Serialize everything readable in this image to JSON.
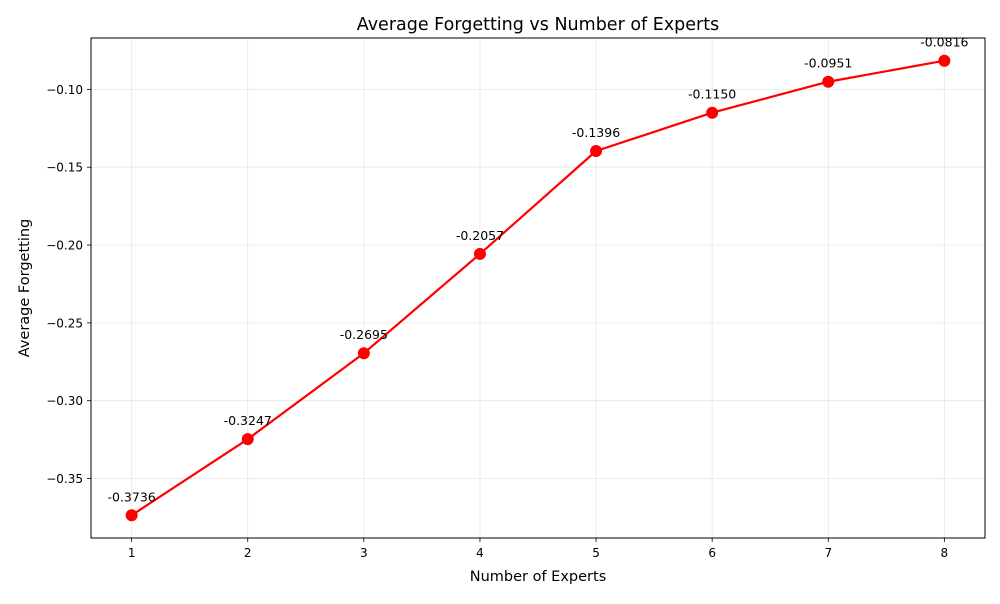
{
  "chart_data": {
    "type": "line",
    "title": "Average Forgetting vs Number of Experts",
    "xlabel": "Number of Experts",
    "ylabel": "Average Forgetting",
    "x": [
      1,
      2,
      3,
      4,
      5,
      6,
      7,
      8
    ],
    "series": [
      {
        "values": [
          -0.3736,
          -0.3247,
          -0.2695,
          -0.2057,
          -0.1396,
          -0.115,
          -0.0951,
          -0.0816
        ],
        "color": "#ff0000",
        "marker": "circle"
      }
    ],
    "data_labels": [
      "-0.3736",
      "-0.3247",
      "-0.2695",
      "-0.2057",
      "-0.1396",
      "-0.1150",
      "-0.0951",
      "-0.0816"
    ],
    "xlim": [
      0.65,
      8.35
    ],
    "ylim": [
      -0.3882,
      -0.067
    ],
    "xticks": [
      1,
      2,
      3,
      4,
      5,
      6,
      7,
      8
    ],
    "xtick_labels": [
      "1",
      "2",
      "3",
      "4",
      "5",
      "6",
      "7",
      "8"
    ],
    "yticks": [
      -0.35,
      -0.3,
      -0.25,
      -0.2,
      -0.15,
      -0.1
    ],
    "ytick_labels": [
      "−0.35",
      "−0.30",
      "−0.25",
      "−0.20",
      "−0.15",
      "−0.10"
    ],
    "grid": true,
    "legend": "none"
  }
}
